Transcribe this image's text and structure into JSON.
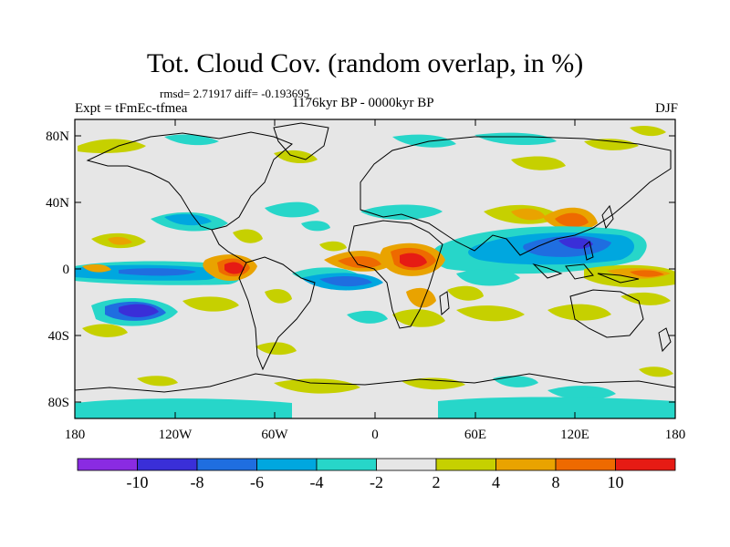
{
  "title": "Tot. Cloud Cov. (random overlap, in %)",
  "stats": "rmsd= 2.71917 diff= -0.193695",
  "experiment": "Expt = tFmEc-tfmea",
  "period": "1176kyr BP - 0000kyr BP",
  "season": "DJF",
  "lat_ticks": [
    "80N",
    "40N",
    "0",
    "40S",
    "80S"
  ],
  "lon_ticks": [
    "180",
    "120W",
    "60W",
    "0",
    "60E",
    "120E",
    "180"
  ],
  "colorbar": {
    "colors": [
      "#8a2be2",
      "#3a2fd8",
      "#1f6ee0",
      "#00a7df",
      "#27d6c9",
      "#e6e6e6",
      "#c6d000",
      "#e9a300",
      "#ee6a00",
      "#e61b14"
    ],
    "labels": [
      "-10",
      "-8",
      "-6",
      "-4",
      "-2",
      "2",
      "4",
      "8",
      "10"
    ]
  }
}
